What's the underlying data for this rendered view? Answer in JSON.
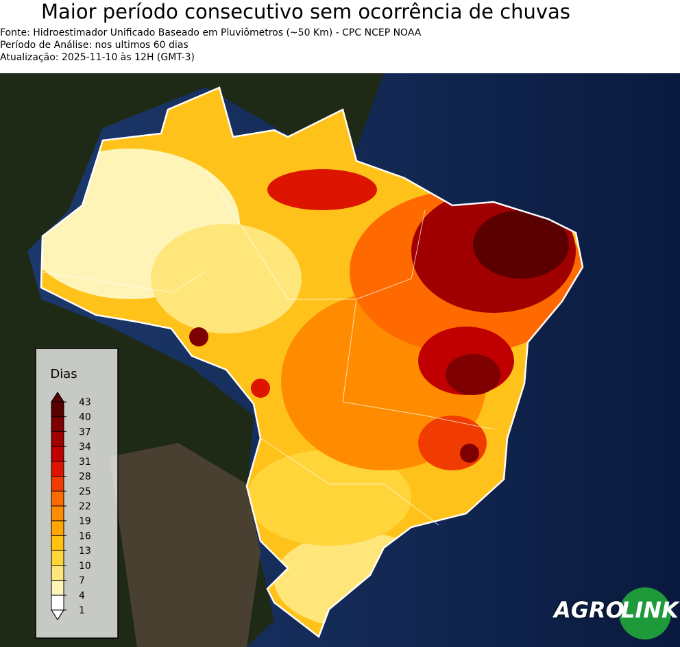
{
  "header": {
    "title": "Maior período consecutivo sem ocorrência de chuvas",
    "source": "Fonte: Hidroestimador Unificado Baseado em Pluviômetros (~50 Km) - CPC NCEP NOAA",
    "period": "Período de Análise: nos ultimos 60 dias",
    "updated": "Atualização: 2025-11-10 às 12H (GMT-3)"
  },
  "colorbar": {
    "label": "Dias",
    "ticks": [
      1,
      4,
      7,
      10,
      13,
      16,
      19,
      22,
      25,
      28,
      31,
      34,
      37,
      40,
      43
    ],
    "colors": [
      "#ffffff",
      "#fff4b8",
      "#ffe67a",
      "#ffd53a",
      "#ffc20e",
      "#ffa500",
      "#ff8c00",
      "#ff6a00",
      "#f03c00",
      "#dc1400",
      "#c00000",
      "#a00000",
      "#7e0000",
      "#5a0000"
    ]
  },
  "logo": {
    "left": "AGRO",
    "right": "LINK"
  }
}
